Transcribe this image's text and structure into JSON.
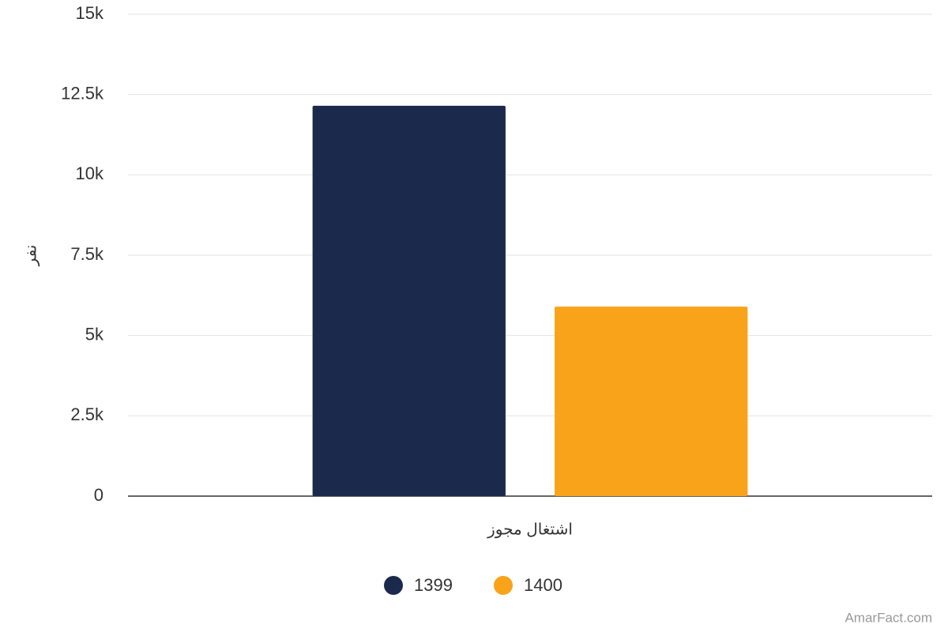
{
  "chart_data": {
    "type": "bar",
    "y_label": "نفر",
    "categories": [
      "اشتغال مجوز"
    ],
    "series": [
      {
        "name": "1399",
        "color": "#1b2a4c",
        "values": [
          12150
        ]
      },
      {
        "name": "1400",
        "color": "#f9a31a",
        "values": [
          5900
        ]
      }
    ],
    "ylim": [
      0,
      15000
    ],
    "yticks": [
      0,
      {
        "value": 2500,
        "label": "2.5k"
      },
      {
        "value": 5000,
        "label": "5k"
      },
      {
        "value": 7500,
        "label": "7.5k"
      },
      {
        "value": 10000,
        "label": "10k"
      },
      {
        "value": 12500,
        "label": "12.5k"
      },
      {
        "value": 15000,
        "label": "15k"
      }
    ],
    "grid": true,
    "legend": "bottom",
    "credit": "AmarFact.com"
  }
}
